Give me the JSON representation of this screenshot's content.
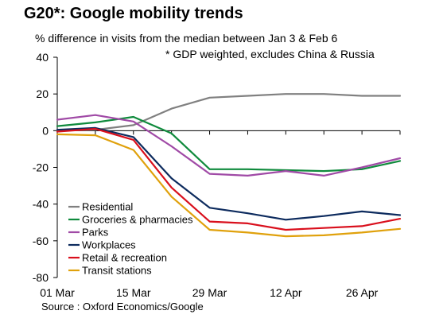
{
  "header": {
    "title": "G20*: Google mobility trends",
    "subtitle": "% difference in visits from the median between Jan 3 & Feb 6",
    "note": "* GDP weighted, excludes China & Russia"
  },
  "footer": {
    "source": "Source : Oxford Economics/Google"
  },
  "chart_data": {
    "type": "line",
    "title": "G20*: Google mobility trends",
    "subtitle": "% difference in visits from the median between Jan 3 & Feb 6",
    "xlabel": "",
    "ylabel": "",
    "x": [
      "01 Mar",
      "08 Mar",
      "15 Mar",
      "22 Mar",
      "29 Mar",
      "05 Apr",
      "12 Apr",
      "19 Apr",
      "26 Apr",
      "03 May"
    ],
    "xticks": [
      "01 Mar",
      "15 Mar",
      "29 Mar",
      "12 Apr",
      "26 Apr"
    ],
    "ylim": [
      -80,
      40
    ],
    "yticks": [
      40,
      20,
      0,
      -20,
      -40,
      -60,
      -80
    ],
    "grid": false,
    "legend_position": "bottom-left",
    "series": [
      {
        "name": "Residential",
        "color": "#808080",
        "values": [
          0,
          0.5,
          3,
          12,
          18,
          19,
          20,
          20,
          19,
          19
        ]
      },
      {
        "name": "Groceries & pharmacies",
        "color": "#0f8a3c",
        "values": [
          2.5,
          4.5,
          7.5,
          -1.5,
          -21,
          -21,
          -21.5,
          -22,
          -21,
          -16.5
        ]
      },
      {
        "name": "Parks",
        "color": "#a04aa6",
        "values": [
          6,
          8.5,
          5,
          -8.5,
          -23.5,
          -24.5,
          -22,
          -24.5,
          -20,
          -15
        ]
      },
      {
        "name": "Workplaces",
        "color": "#0d2b5e",
        "values": [
          0.5,
          1.5,
          -3.5,
          -26,
          -42,
          -45,
          -48.5,
          -46.5,
          -44,
          -46
        ]
      },
      {
        "name": "Retail & recreation",
        "color": "#d90f1c",
        "values": [
          -0.5,
          1,
          -5,
          -31,
          -49.5,
          -50.5,
          -54,
          -53,
          -52,
          -48
        ]
      },
      {
        "name": "Transit stations",
        "color": "#e0a10c",
        "values": [
          -2,
          -2.5,
          -10.5,
          -36,
          -54,
          -55.5,
          -57.5,
          -57,
          -55.5,
          -53.5
        ]
      }
    ]
  }
}
